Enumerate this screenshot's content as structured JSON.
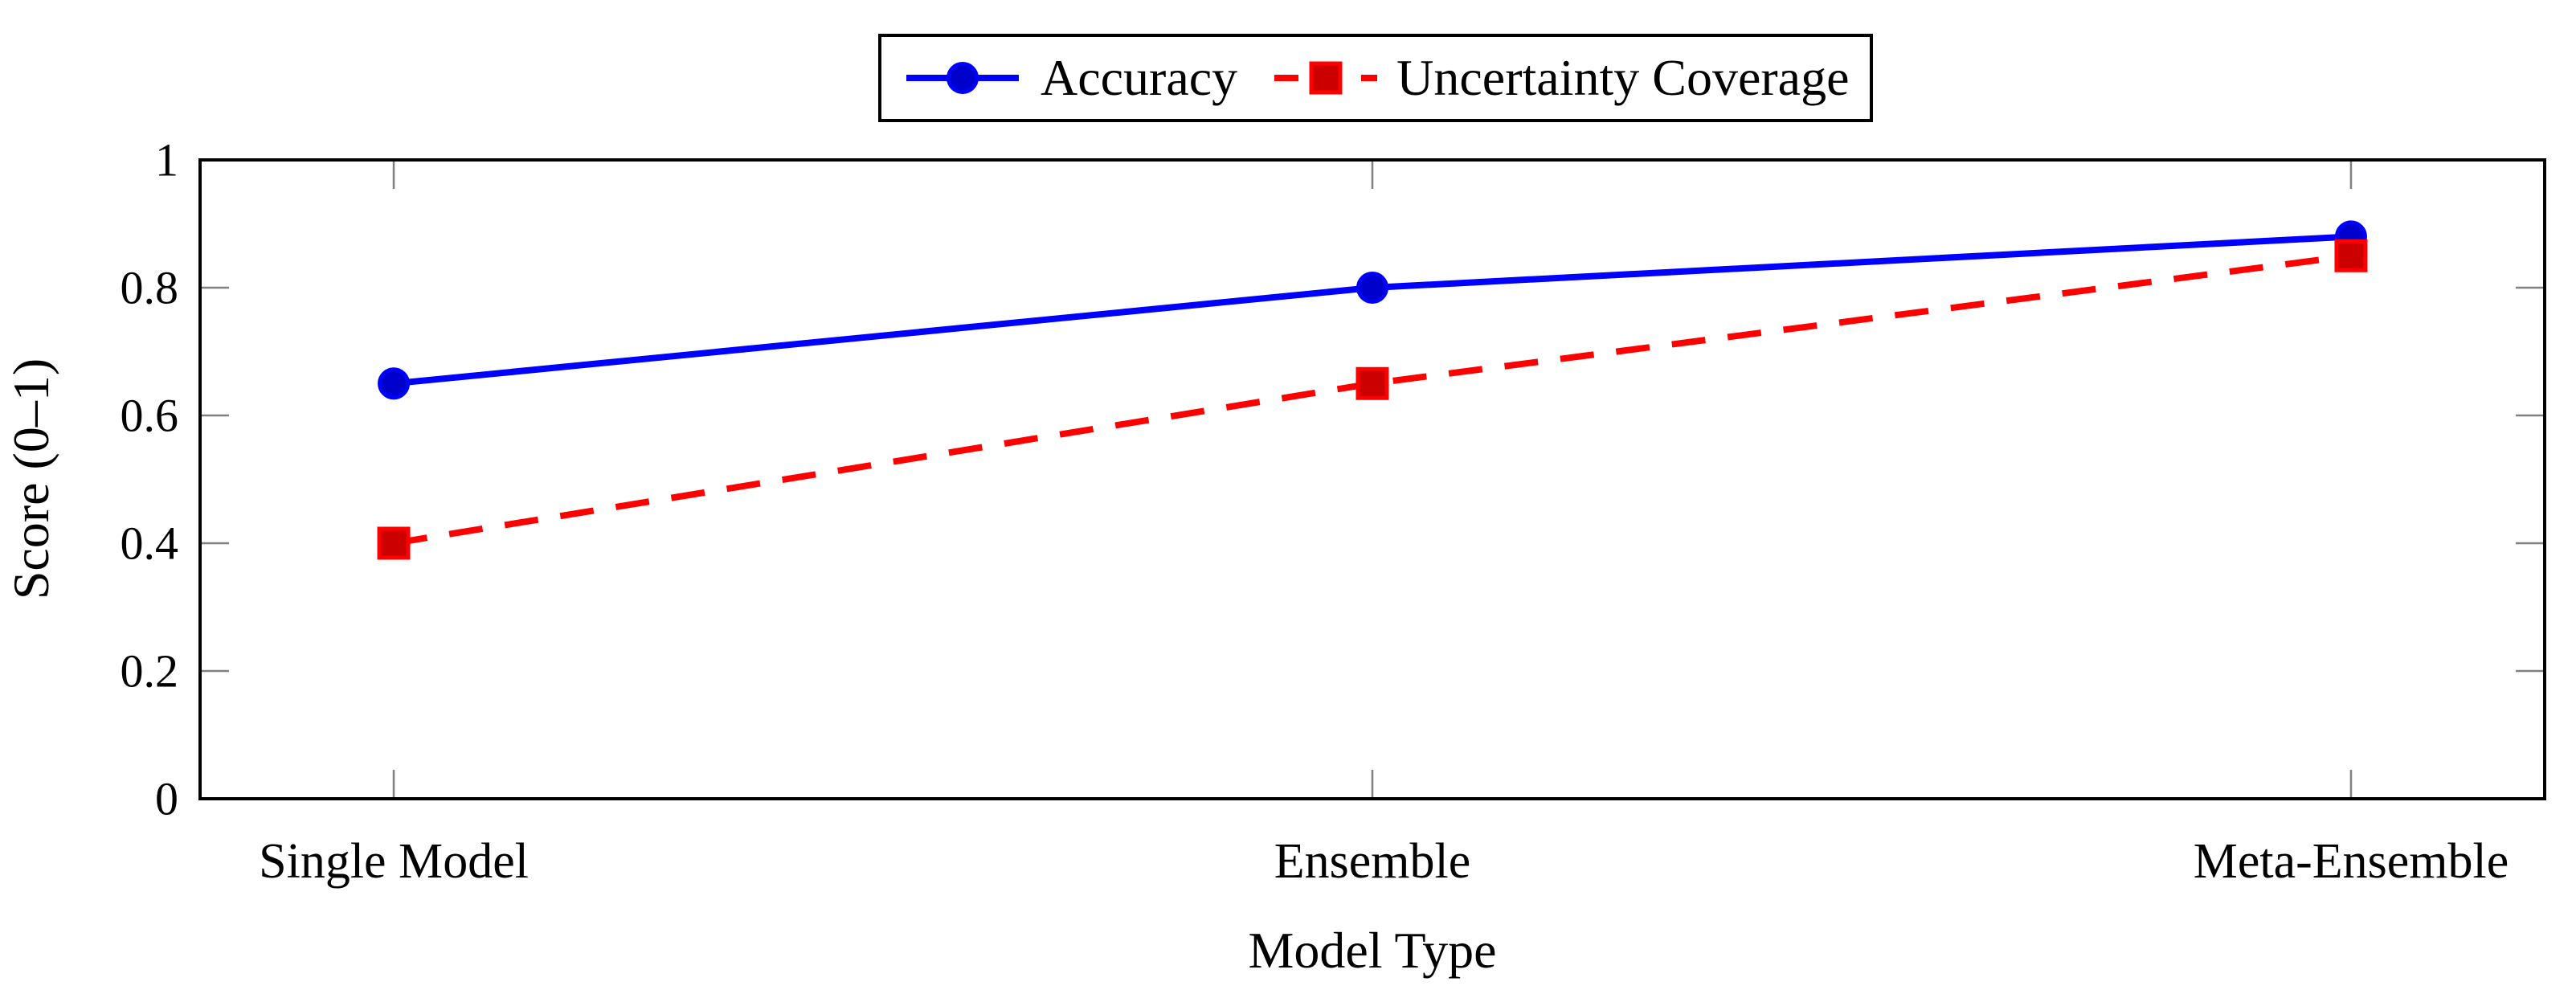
{
  "chart_data": {
    "type": "line",
    "title": "",
    "xlabel": "Model Type",
    "ylabel": "Score (0–1)",
    "categories": [
      "Single Model",
      "Ensemble",
      "Meta-Ensemble"
    ],
    "series": [
      {
        "name": "Accuracy",
        "values": [
          0.65,
          0.8,
          0.88
        ],
        "color": "#0000ff",
        "marker": "circle",
        "marker_fill": "#0000cc",
        "line_style": "solid"
      },
      {
        "name": "Uncertainty Coverage",
        "values": [
          0.4,
          0.65,
          0.85
        ],
        "color": "#ff0000",
        "marker": "square",
        "marker_fill": "#cc0000",
        "line_style": "dashed"
      }
    ],
    "ylim": [
      0,
      1
    ],
    "yticks": [
      0,
      0.2,
      0.4,
      0.6,
      0.8,
      1
    ],
    "ytick_labels": [
      "0",
      "0.2",
      "0.4",
      "0.6",
      "0.8",
      "1"
    ],
    "grid": false,
    "legend_position": "top-center",
    "frame_color": "#000000",
    "tick_color": "#808080"
  }
}
